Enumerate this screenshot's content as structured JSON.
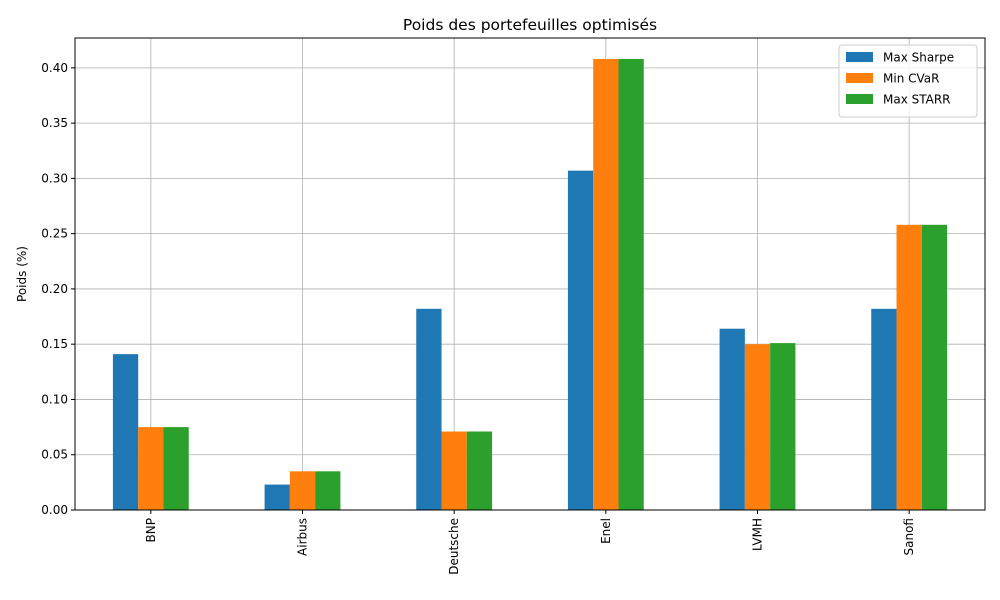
{
  "chart_data": {
    "type": "bar",
    "title": "Poids des portefeuilles optimisés",
    "xlabel": "",
    "ylabel": "Poids (%)",
    "categories": [
      "BNP",
      "Airbus",
      "Deutsche",
      "Enel",
      "LVMH",
      "Sanofi"
    ],
    "series": [
      {
        "name": "Max Sharpe",
        "color": "#1f77b4",
        "values": [
          0.141,
          0.023,
          0.182,
          0.307,
          0.164,
          0.182
        ]
      },
      {
        "name": "Min CVaR",
        "color": "#ff7f0e",
        "values": [
          0.075,
          0.035,
          0.071,
          0.408,
          0.15,
          0.258
        ]
      },
      {
        "name": "Max STARR",
        "color": "#2ca02c",
        "values": [
          0.075,
          0.035,
          0.071,
          0.408,
          0.151,
          0.258
        ]
      }
    ],
    "ylim": [
      0,
      0.427
    ],
    "yticks": [
      "0.00",
      "0.05",
      "0.10",
      "0.15",
      "0.20",
      "0.25",
      "0.30",
      "0.35",
      "0.40"
    ],
    "ytick_values": [
      0,
      0.05,
      0.1,
      0.15,
      0.2,
      0.25,
      0.3,
      0.35,
      0.4
    ],
    "grid": true,
    "legend_position": "top-right",
    "xtick_rotation": "vertical"
  }
}
